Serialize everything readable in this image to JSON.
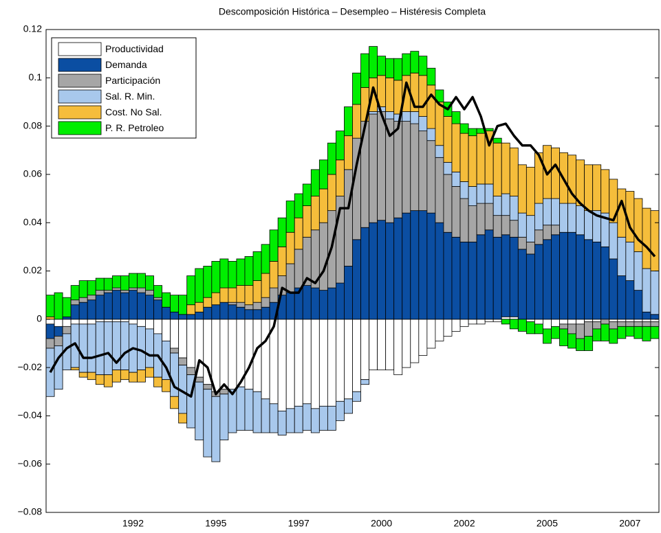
{
  "chart_data": {
    "type": "bar",
    "stacked": true,
    "title": "Descomposición Histórica – Desempleo – Histéresis Completa",
    "categories": [
      null,
      null,
      null,
      null,
      null,
      null,
      null,
      null,
      null,
      null,
      "1992",
      null,
      null,
      null,
      null,
      null,
      null,
      null,
      null,
      null,
      "1995",
      null,
      null,
      null,
      null,
      null,
      null,
      null,
      null,
      null,
      "1997",
      null,
      null,
      null,
      null,
      null,
      null,
      null,
      null,
      null,
      "2000",
      null,
      null,
      null,
      null,
      null,
      null,
      null,
      null,
      null,
      "2002",
      null,
      null,
      null,
      null,
      null,
      null,
      null,
      null,
      null,
      "2005",
      null,
      null,
      null,
      null,
      null,
      null,
      null,
      null,
      null,
      "2007",
      null,
      null,
      null
    ],
    "series": [
      {
        "name": "Productividad",
        "color": "#ffffff",
        "values": [
          -0.002,
          -0.003,
          -0.003,
          -0.002,
          -0.002,
          -0.002,
          -0.001,
          -0.001,
          -0.001,
          -0.001,
          -0.002,
          -0.003,
          -0.004,
          -0.006,
          -0.009,
          -0.012,
          -0.016,
          -0.02,
          -0.024,
          -0.027,
          -0.03,
          -0.029,
          -0.029,
          -0.028,
          -0.029,
          -0.03,
          -0.033,
          -0.035,
          -0.038,
          -0.037,
          -0.036,
          -0.035,
          -0.037,
          -0.036,
          -0.036,
          -0.034,
          -0.033,
          -0.03,
          -0.025,
          -0.021,
          -0.021,
          -0.021,
          -0.023,
          -0.02,
          -0.018,
          -0.015,
          -0.012,
          -0.009,
          -0.007,
          -0.005,
          -0.003,
          -0.002,
          -0.002,
          -0.001,
          -0.001,
          0.001,
          0.001,
          0,
          -0.001,
          -0.002,
          -0.004,
          -0.003,
          -0.002,
          -0.002,
          -0.002,
          -0.001,
          -0.001,
          0,
          -0.001,
          -0.001,
          -0.001,
          -0.001,
          -0.001,
          -0.001
        ]
      },
      {
        "name": "Demanda",
        "color": "#0b4ea2",
        "values": [
          -0.006,
          -0.004,
          0.001,
          0.006,
          0.007,
          0.008,
          0.01,
          0.011,
          0.012,
          0.011,
          0.012,
          0.011,
          0.01,
          0.008,
          0.005,
          0.003,
          0.002,
          0.002,
          0.003,
          0.005,
          0.006,
          0.007,
          0.006,
          0.005,
          0.004,
          0.004,
          0.005,
          0.007,
          0.01,
          0.011,
          0.013,
          0.014,
          0.013,
          0.012,
          0.013,
          0.015,
          0.022,
          0.033,
          0.038,
          0.04,
          0.041,
          0.04,
          0.042,
          0.044,
          0.045,
          0.045,
          0.044,
          0.04,
          0.036,
          0.034,
          0.032,
          0.032,
          0.035,
          0.037,
          0.034,
          0.034,
          0.033,
          0.029,
          0.027,
          0.031,
          0.033,
          0.035,
          0.036,
          0.036,
          0.035,
          0.033,
          0.032,
          0.03,
          0.025,
          0.018,
          0.016,
          0.012,
          0.003,
          0.002
        ]
      },
      {
        "name": "Participación",
        "color": "#a6a6a6",
        "values": [
          -0.004,
          -0.004,
          -0.003,
          0.002,
          0.002,
          0.002,
          0.002,
          0.001,
          0.001,
          0.001,
          0.001,
          0.002,
          0.002,
          0.001,
          0,
          -0.002,
          -0.003,
          -0.003,
          -0.002,
          -0.002,
          -0.002,
          -0.002,
          0.001,
          0.002,
          0.002,
          0.003,
          0.004,
          0.006,
          0.008,
          0.012,
          0.016,
          0.02,
          0.024,
          0.028,
          0.032,
          0.036,
          0.04,
          0.042,
          0.044,
          0.045,
          0.045,
          0.043,
          0.04,
          0.038,
          0.036,
          0.033,
          0.03,
          0.027,
          0.024,
          0.021,
          0.018,
          0.015,
          0.013,
          0.011,
          0.009,
          0.008,
          0.007,
          0.005,
          0.005,
          0.006,
          0.006,
          0.004,
          -0.002,
          -0.004,
          -0.006,
          -0.006,
          -0.003,
          -0.002,
          -0.003,
          -0.002,
          -0.002,
          -0.002,
          -0.002,
          -0.002
        ]
      },
      {
        "name": "Sal. R. Min.",
        "color": "#a8c8ec",
        "values": [
          -0.02,
          -0.018,
          -0.015,
          -0.018,
          -0.02,
          -0.02,
          -0.022,
          -0.022,
          -0.02,
          -0.02,
          -0.02,
          -0.018,
          -0.016,
          -0.018,
          -0.016,
          -0.018,
          -0.02,
          -0.022,
          -0.024,
          -0.028,
          -0.027,
          -0.019,
          -0.018,
          -0.018,
          -0.017,
          -0.017,
          -0.014,
          -0.012,
          -0.01,
          -0.01,
          -0.011,
          -0.011,
          -0.01,
          -0.01,
          -0.01,
          -0.008,
          -0.006,
          -0.004,
          -0.002,
          0.001,
          0.002,
          0.003,
          0.003,
          0.004,
          0.005,
          0.006,
          0.005,
          0.005,
          0.005,
          0.006,
          0.007,
          0.008,
          0.008,
          0.008,
          0.008,
          0.009,
          0.01,
          0.01,
          0.011,
          0.011,
          0.011,
          0.011,
          0.012,
          0.012,
          0.012,
          0.012,
          0.013,
          0.014,
          0.015,
          0.016,
          0.016,
          0.016,
          0.018,
          0.018
        ]
      },
      {
        "name": "Cost. No Sal.",
        "color": "#f5bd3b",
        "values": [
          0.001,
          0,
          0,
          -0.001,
          -0.002,
          -0.003,
          -0.004,
          -0.005,
          -0.005,
          -0.004,
          -0.004,
          -0.005,
          -0.004,
          -0.004,
          -0.005,
          -0.005,
          -0.004,
          0.004,
          0.004,
          0.004,
          0.005,
          0.006,
          0.006,
          0.007,
          0.008,
          0.009,
          0.01,
          0.011,
          0.012,
          0.013,
          0.013,
          0.013,
          0.014,
          0.014,
          0.015,
          0.015,
          0.014,
          0.014,
          0.014,
          0.014,
          0.013,
          0.014,
          0.014,
          0.015,
          0.016,
          0.017,
          0.018,
          0.018,
          0.019,
          0.02,
          0.02,
          0.021,
          0.021,
          0.022,
          0.022,
          0.021,
          0.02,
          0.02,
          0.02,
          0.021,
          0.022,
          0.021,
          0.021,
          0.02,
          0.019,
          0.019,
          0.019,
          0.018,
          0.018,
          0.02,
          0.021,
          0.022,
          0.025,
          0.025
        ]
      },
      {
        "name": "P. R. Petroleo",
        "color": "#00ee00",
        "values": [
          0.009,
          0.011,
          0.008,
          0.006,
          0.007,
          0.006,
          0.005,
          0.005,
          0.005,
          0.006,
          0.006,
          0.006,
          0.006,
          0.005,
          0.006,
          0.007,
          0.008,
          0.012,
          0.014,
          0.013,
          0.013,
          0.012,
          0.011,
          0.011,
          0.012,
          0.012,
          0.012,
          0.013,
          0.012,
          0.013,
          0.01,
          0.009,
          0.011,
          0.012,
          0.013,
          0.012,
          0.012,
          0.013,
          0.014,
          0.013,
          0.008,
          0.008,
          0.009,
          0.009,
          0.009,
          0.008,
          0.007,
          0.005,
          0.006,
          0.005,
          0.004,
          0.003,
          0.002,
          0.001,
          0.002,
          -0.002,
          -0.004,
          -0.005,
          -0.005,
          -0.004,
          -0.006,
          -0.005,
          -0.007,
          -0.006,
          -0.005,
          -0.006,
          -0.005,
          -0.007,
          -0.006,
          -0.005,
          -0.004,
          -0.005,
          -0.006,
          -0.005
        ]
      }
    ],
    "line": {
      "color": "#000000",
      "values": [
        -0.022,
        -0.016,
        -0.012,
        -0.01,
        -0.016,
        -0.016,
        -0.015,
        -0.014,
        -0.018,
        -0.014,
        -0.012,
        -0.013,
        -0.015,
        -0.015,
        -0.02,
        -0.028,
        -0.03,
        -0.032,
        -0.017,
        -0.02,
        -0.031,
        -0.027,
        -0.031,
        -0.026,
        -0.02,
        -0.012,
        -0.009,
        -0.003,
        0.013,
        0.011,
        0.011,
        0.017,
        0.015,
        0.02,
        0.03,
        0.046,
        0.046,
        0.064,
        0.08,
        0.096,
        0.085,
        0.076,
        0.079,
        0.098,
        0.088,
        0.088,
        0.093,
        0.089,
        0.087,
        0.092,
        0.087,
        0.092,
        0.084,
        0.072,
        0.08,
        0.081,
        0.076,
        0.072,
        0.072,
        0.068,
        0.06,
        0.064,
        0.058,
        0.052,
        0.048,
        0.045,
        0.043,
        0.042,
        0.041,
        0.049,
        0.038,
        0.033,
        0.03,
        0.026
      ]
    },
    "ylim": [
      -0.08,
      0.12
    ],
    "yticks": [
      {
        "value": -0.08,
        "label": "−0.08"
      },
      {
        "value": -0.06,
        "label": "−0.06"
      },
      {
        "value": -0.04,
        "label": "−0.04"
      },
      {
        "value": -0.02,
        "label": "−0.02"
      },
      0,
      0.02,
      0.04,
      0.06,
      0.08,
      0.1,
      0.12
    ],
    "legend": "upper left",
    "grid": false
  }
}
